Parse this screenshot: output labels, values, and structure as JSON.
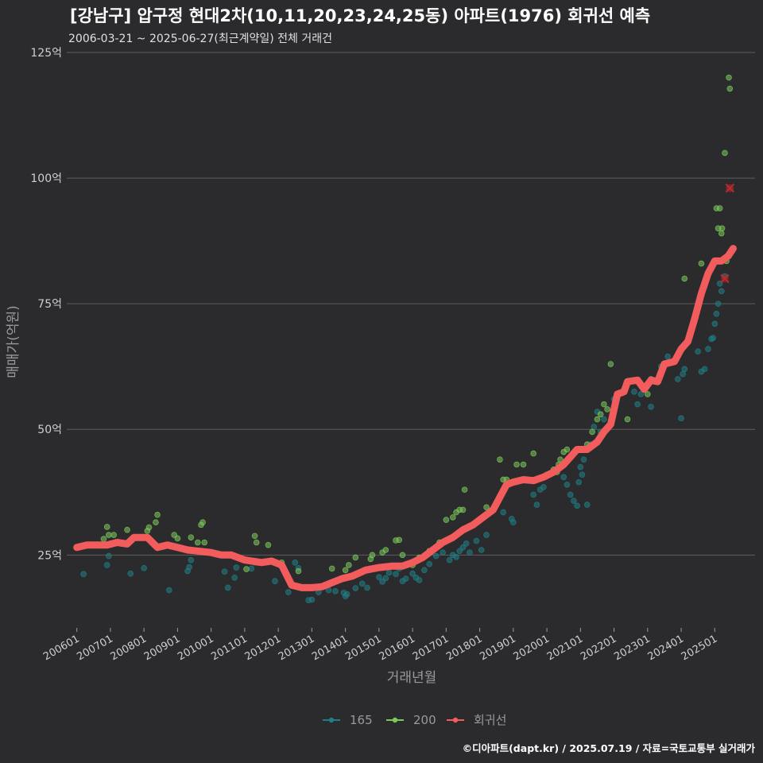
{
  "header": {
    "title": "[강남구] 압구정 현대2차(10,11,20,23,24,25동) 아파트(1976) 회귀선 예측",
    "subtitle": "2006-03-21 ~ 2025-06-27(최근계약일) 전체 거래건"
  },
  "footer": {
    "credit": "©디아파트(dapt.kr) / 2025.07.19 / 자료=국토교통부 실거래가"
  },
  "chart_data": {
    "type": "scatter",
    "title": "[강남구] 압구정 현대2차(10,11,20,23,24,25동) 아파트(1976) 회귀선 예측",
    "xlabel": "거래년월",
    "ylabel": "매매가(억원)",
    "xlim": [
      2005.7,
      2026.2
    ],
    "ylim": [
      10.5,
      125
    ],
    "y_ticks": [
      25,
      50,
      75,
      100,
      125
    ],
    "y_tick_labels": [
      "25억",
      "50억",
      "75억",
      "100억",
      "125억"
    ],
    "x_ticks": [
      2006,
      2007,
      2008,
      2009,
      2010,
      2011,
      2012,
      2013,
      2014,
      2015,
      2016,
      2017,
      2018,
      2019,
      2020,
      2021,
      2022,
      2023,
      2024,
      2025
    ],
    "x_tick_labels": [
      "200601",
      "200701",
      "200801",
      "200901",
      "201001",
      "201101",
      "201201",
      "201301",
      "201401",
      "201501",
      "201601",
      "201701",
      "201801",
      "201901",
      "202001",
      "202101",
      "202201",
      "202301",
      "202401",
      "202501"
    ],
    "grid": true,
    "legend": {
      "position": "bottom",
      "entries": [
        {
          "name": "165",
          "color": "#1f7f86"
        },
        {
          "name": "200",
          "color": "#7bc95a"
        },
        {
          "name": "회귀선",
          "color": "#f25c5c"
        }
      ]
    },
    "series": [
      {
        "name": "165",
        "color": "#1f7f86",
        "points": [
          [
            2006.2,
            21.2
          ],
          [
            2006.9,
            23
          ],
          [
            2006.95,
            24.8
          ],
          [
            2007.6,
            21.3
          ],
          [
            2008.0,
            22.4
          ],
          [
            2008.75,
            18
          ],
          [
            2009.3,
            21.8
          ],
          [
            2009.35,
            22.6
          ],
          [
            2009.4,
            24
          ],
          [
            2010.4,
            21.7
          ],
          [
            2010.5,
            18.5
          ],
          [
            2010.7,
            20.5
          ],
          [
            2010.75,
            22.5
          ],
          [
            2011.2,
            22.3
          ],
          [
            2011.3,
            23.5
          ],
          [
            2011.9,
            19.8
          ],
          [
            2012.3,
            17.6
          ],
          [
            2012.5,
            23.5
          ],
          [
            2012.6,
            22.4
          ],
          [
            2012.9,
            16
          ],
          [
            2013.0,
            16.1
          ],
          [
            2013.2,
            17.6
          ],
          [
            2013.5,
            18
          ],
          [
            2013.7,
            17.8
          ],
          [
            2013.95,
            17.5
          ],
          [
            2014.0,
            16.8
          ],
          [
            2014.05,
            17.2
          ],
          [
            2014.3,
            18.4
          ],
          [
            2014.5,
            19.3
          ],
          [
            2014.65,
            18.5
          ],
          [
            2015.0,
            20.6
          ],
          [
            2015.1,
            19.7
          ],
          [
            2015.2,
            20.4
          ],
          [
            2015.3,
            21.5
          ],
          [
            2015.5,
            21.2
          ],
          [
            2015.6,
            22.3
          ],
          [
            2015.7,
            19.8
          ],
          [
            2015.8,
            20.3
          ],
          [
            2016.0,
            21.3
          ],
          [
            2016.1,
            20.5
          ],
          [
            2016.2,
            20
          ],
          [
            2016.35,
            22
          ],
          [
            2016.5,
            23.2
          ],
          [
            2016.7,
            24.8
          ],
          [
            2016.9,
            25.5
          ],
          [
            2017.1,
            24
          ],
          [
            2017.2,
            25
          ],
          [
            2017.3,
            24.6
          ],
          [
            2017.4,
            25.8
          ],
          [
            2017.5,
            26.5
          ],
          [
            2017.6,
            27.3
          ],
          [
            2017.7,
            25.5
          ],
          [
            2017.9,
            27.8
          ],
          [
            2018.05,
            26
          ],
          [
            2018.2,
            29
          ],
          [
            2018.7,
            33.5
          ],
          [
            2018.95,
            32.2
          ],
          [
            2019.0,
            31.5
          ],
          [
            2019.6,
            37
          ],
          [
            2019.7,
            35
          ],
          [
            2019.8,
            38
          ],
          [
            2019.9,
            38.5
          ],
          [
            2020.5,
            40.5
          ],
          [
            2020.6,
            39
          ],
          [
            2020.7,
            37
          ],
          [
            2020.8,
            35.8
          ],
          [
            2020.9,
            34.8
          ],
          [
            2020.95,
            39.5
          ],
          [
            2021.0,
            42.5
          ],
          [
            2021.05,
            41
          ],
          [
            2021.1,
            44
          ],
          [
            2021.2,
            35
          ],
          [
            2021.3,
            47
          ],
          [
            2021.4,
            50.5
          ],
          [
            2021.5,
            53.5
          ],
          [
            2021.6,
            49.5
          ],
          [
            2021.7,
            52
          ],
          [
            2022.0,
            56
          ],
          [
            2022.3,
            58
          ],
          [
            2022.6,
            57.5
          ],
          [
            2022.7,
            55
          ],
          [
            2022.8,
            57
          ],
          [
            2023.1,
            54.5
          ],
          [
            2023.4,
            62.5
          ],
          [
            2023.6,
            64.5
          ],
          [
            2023.9,
            60
          ],
          [
            2024.0,
            52.2
          ],
          [
            2024.05,
            61
          ],
          [
            2024.1,
            62
          ],
          [
            2024.5,
            65.5
          ],
          [
            2024.6,
            61.5
          ],
          [
            2024.7,
            62
          ],
          [
            2024.8,
            66
          ],
          [
            2024.9,
            68
          ],
          [
            2024.95,
            68.2
          ],
          [
            2025.0,
            71
          ],
          [
            2025.05,
            73
          ],
          [
            2025.1,
            75
          ],
          [
            2025.15,
            79
          ],
          [
            2025.2,
            77.5
          ],
          [
            2025.3,
            80.5
          ]
        ]
      },
      {
        "name": "200",
        "color": "#7bc95a",
        "points": [
          [
            2006.8,
            28.2
          ],
          [
            2006.9,
            30.6
          ],
          [
            2006.95,
            29
          ],
          [
            2007.1,
            29
          ],
          [
            2007.5,
            30
          ],
          [
            2008.1,
            29.8
          ],
          [
            2008.15,
            30.5
          ],
          [
            2008.35,
            31.5
          ],
          [
            2008.4,
            33
          ],
          [
            2008.9,
            29
          ],
          [
            2009.0,
            28.3
          ],
          [
            2009.4,
            28.5
          ],
          [
            2009.6,
            27.5
          ],
          [
            2009.7,
            31
          ],
          [
            2009.75,
            31.5
          ],
          [
            2009.8,
            27.5
          ],
          [
            2010.6,
            25
          ],
          [
            2011.05,
            22.2
          ],
          [
            2011.3,
            28.8
          ],
          [
            2011.35,
            27.5
          ],
          [
            2011.7,
            27
          ],
          [
            2012.1,
            23.5
          ],
          [
            2012.6,
            21.8
          ],
          [
            2013.6,
            22.3
          ],
          [
            2014.0,
            22
          ],
          [
            2014.1,
            23
          ],
          [
            2014.3,
            24.5
          ],
          [
            2014.75,
            24.2
          ],
          [
            2014.8,
            25
          ],
          [
            2015.1,
            25.5
          ],
          [
            2015.2,
            26
          ],
          [
            2015.5,
            27.9
          ],
          [
            2015.6,
            28
          ],
          [
            2015.7,
            25
          ],
          [
            2016.0,
            23
          ],
          [
            2016.2,
            24.5
          ],
          [
            2016.5,
            25.8
          ],
          [
            2016.8,
            27.5
          ],
          [
            2017.0,
            32
          ],
          [
            2017.2,
            32.5
          ],
          [
            2017.3,
            33.5
          ],
          [
            2017.4,
            34
          ],
          [
            2017.5,
            34
          ],
          [
            2017.55,
            38
          ],
          [
            2018.2,
            34.5
          ],
          [
            2018.6,
            44
          ],
          [
            2018.7,
            40
          ],
          [
            2018.8,
            40
          ],
          [
            2019.1,
            43
          ],
          [
            2019.3,
            43
          ],
          [
            2019.6,
            45.2
          ],
          [
            2019.7,
            40
          ],
          [
            2020.0,
            41
          ],
          [
            2020.2,
            42
          ],
          [
            2020.3,
            41.5
          ],
          [
            2020.35,
            43
          ],
          [
            2020.4,
            44
          ],
          [
            2020.5,
            45.5
          ],
          [
            2020.6,
            46
          ],
          [
            2021.2,
            47
          ],
          [
            2021.35,
            49.5
          ],
          [
            2021.5,
            52
          ],
          [
            2021.6,
            53
          ],
          [
            2021.7,
            55
          ],
          [
            2021.8,
            54
          ],
          [
            2021.9,
            63
          ],
          [
            2022.4,
            52
          ],
          [
            2023.0,
            57
          ],
          [
            2023.1,
            60
          ],
          [
            2024.1,
            80
          ],
          [
            2024.6,
            83
          ],
          [
            2025.05,
            94
          ],
          [
            2025.1,
            90
          ],
          [
            2025.15,
            94
          ],
          [
            2025.2,
            89
          ],
          [
            2025.22,
            90
          ],
          [
            2025.3,
            105
          ],
          [
            2025.35,
            83.5
          ],
          [
            2025.42,
            120
          ],
          [
            2025.45,
            117.8
          ]
        ]
      }
    ],
    "regression": {
      "name": "회귀선",
      "color": "#f25c5c",
      "points": [
        [
          2006.0,
          26.5
        ],
        [
          2006.3,
          27
        ],
        [
          2006.9,
          27
        ],
        [
          2007.2,
          27.5
        ],
        [
          2007.5,
          27.2
        ],
        [
          2007.7,
          28.5
        ],
        [
          2008.1,
          28.5
        ],
        [
          2008.4,
          26.5
        ],
        [
          2008.7,
          27
        ],
        [
          2009.0,
          26.5
        ],
        [
          2009.3,
          26
        ],
        [
          2009.6,
          25.8
        ],
        [
          2010.0,
          25.5
        ],
        [
          2010.3,
          25
        ],
        [
          2010.6,
          25
        ],
        [
          2011.0,
          24
        ],
        [
          2011.5,
          23.5
        ],
        [
          2011.8,
          23.8
        ],
        [
          2012.1,
          23
        ],
        [
          2012.4,
          19
        ],
        [
          2012.7,
          18.5
        ],
        [
          2013.0,
          18.5
        ],
        [
          2013.3,
          18.7
        ],
        [
          2013.6,
          19.5
        ],
        [
          2013.9,
          20.3
        ],
        [
          2014.2,
          20.8
        ],
        [
          2014.6,
          22
        ],
        [
          2015.0,
          22.5
        ],
        [
          2015.4,
          22.8
        ],
        [
          2015.7,
          22.8
        ],
        [
          2016.0,
          23.5
        ],
        [
          2016.3,
          24.5
        ],
        [
          2016.6,
          26
        ],
        [
          2016.9,
          27.5
        ],
        [
          2017.2,
          28.5
        ],
        [
          2017.5,
          30
        ],
        [
          2017.8,
          31
        ],
        [
          2018.1,
          32.5
        ],
        [
          2018.4,
          34
        ],
        [
          2018.6,
          36.5
        ],
        [
          2018.8,
          39
        ],
        [
          2019.0,
          39.5
        ],
        [
          2019.3,
          40
        ],
        [
          2019.6,
          39.8
        ],
        [
          2019.9,
          40.5
        ],
        [
          2020.2,
          41.5
        ],
        [
          2020.5,
          43
        ],
        [
          2020.7,
          44.5
        ],
        [
          2020.9,
          46
        ],
        [
          2021.2,
          46
        ],
        [
          2021.5,
          47.5
        ],
        [
          2021.7,
          49.5
        ],
        [
          2021.9,
          51
        ],
        [
          2022.1,
          57
        ],
        [
          2022.3,
          57.5
        ],
        [
          2022.4,
          59.5
        ],
        [
          2022.7,
          59.8
        ],
        [
          2022.9,
          58
        ],
        [
          2023.1,
          59.8
        ],
        [
          2023.3,
          59.5
        ],
        [
          2023.5,
          63
        ],
        [
          2023.8,
          63.5
        ],
        [
          2024.0,
          66
        ],
        [
          2024.2,
          67.5
        ],
        [
          2024.4,
          72
        ],
        [
          2024.6,
          77
        ],
        [
          2024.8,
          81
        ],
        [
          2025.0,
          83.5
        ],
        [
          2025.2,
          83.5
        ],
        [
          2025.4,
          84.5
        ],
        [
          2025.55,
          86
        ]
      ]
    },
    "predictions": [
      {
        "x": 2025.3,
        "y": 80,
        "color": "#c0282e"
      },
      {
        "x": 2025.45,
        "y": 98,
        "color": "#c0282e"
      }
    ]
  }
}
